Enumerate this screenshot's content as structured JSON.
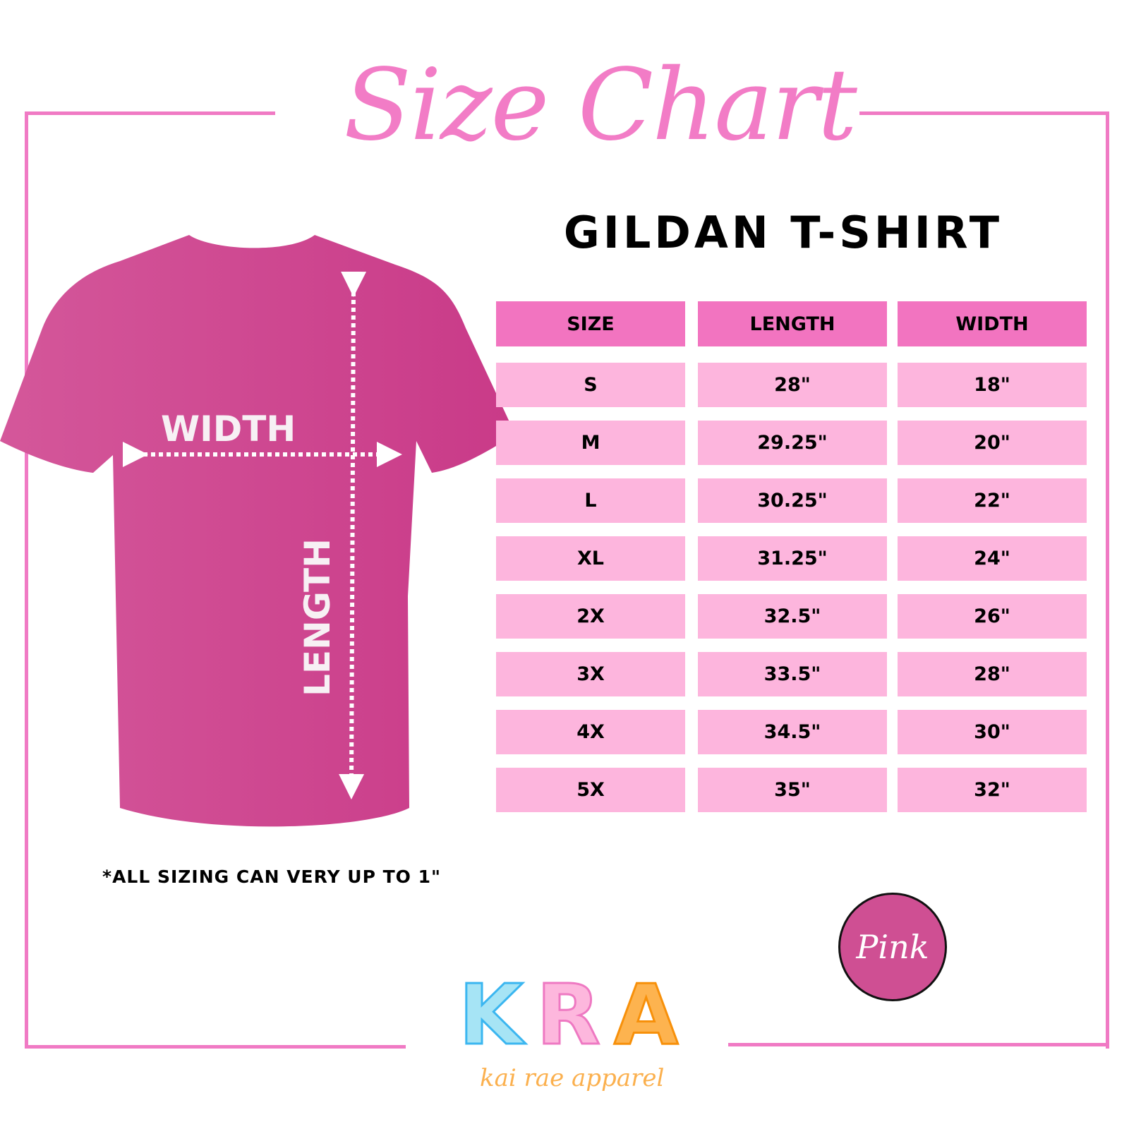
{
  "title": "Size Chart",
  "subtitle": "GILDAN T-SHIRT",
  "colors": {
    "accent": "#f07ac4",
    "header_fill": "#f274c0",
    "row_fill": "#fdb5dd",
    "shirt": "#d04e94"
  },
  "shirt": {
    "width_label": "WIDTH",
    "length_label": "LENGTH"
  },
  "table": {
    "headers": [
      "SIZE",
      "LENGTH",
      "WIDTH"
    ],
    "rows": [
      [
        "S",
        "28\"",
        "18\""
      ],
      [
        "M",
        "29.25\"",
        "20\""
      ],
      [
        "L",
        "30.25\"",
        "22\""
      ],
      [
        "XL",
        "31.25\"",
        "24\""
      ],
      [
        "2X",
        "32.5\"",
        "26\""
      ],
      [
        "3X",
        "33.5\"",
        "28\""
      ],
      [
        "4X",
        "34.5\"",
        "30\""
      ],
      [
        "5X",
        "35\"",
        "32\""
      ]
    ]
  },
  "note": "*ALL SIZING CAN VERY UP TO 1\"",
  "color_badge": "Pink",
  "logo": {
    "letters": [
      "K",
      "R",
      "A"
    ],
    "tagline": "kai rae apparel",
    "letter_colors": [
      "#a6e4f5",
      "#fdb7dd",
      "#fdb34f"
    ],
    "stroke_colors": [
      "#3bb6f0",
      "#ee79c2",
      "#f7900a"
    ]
  }
}
